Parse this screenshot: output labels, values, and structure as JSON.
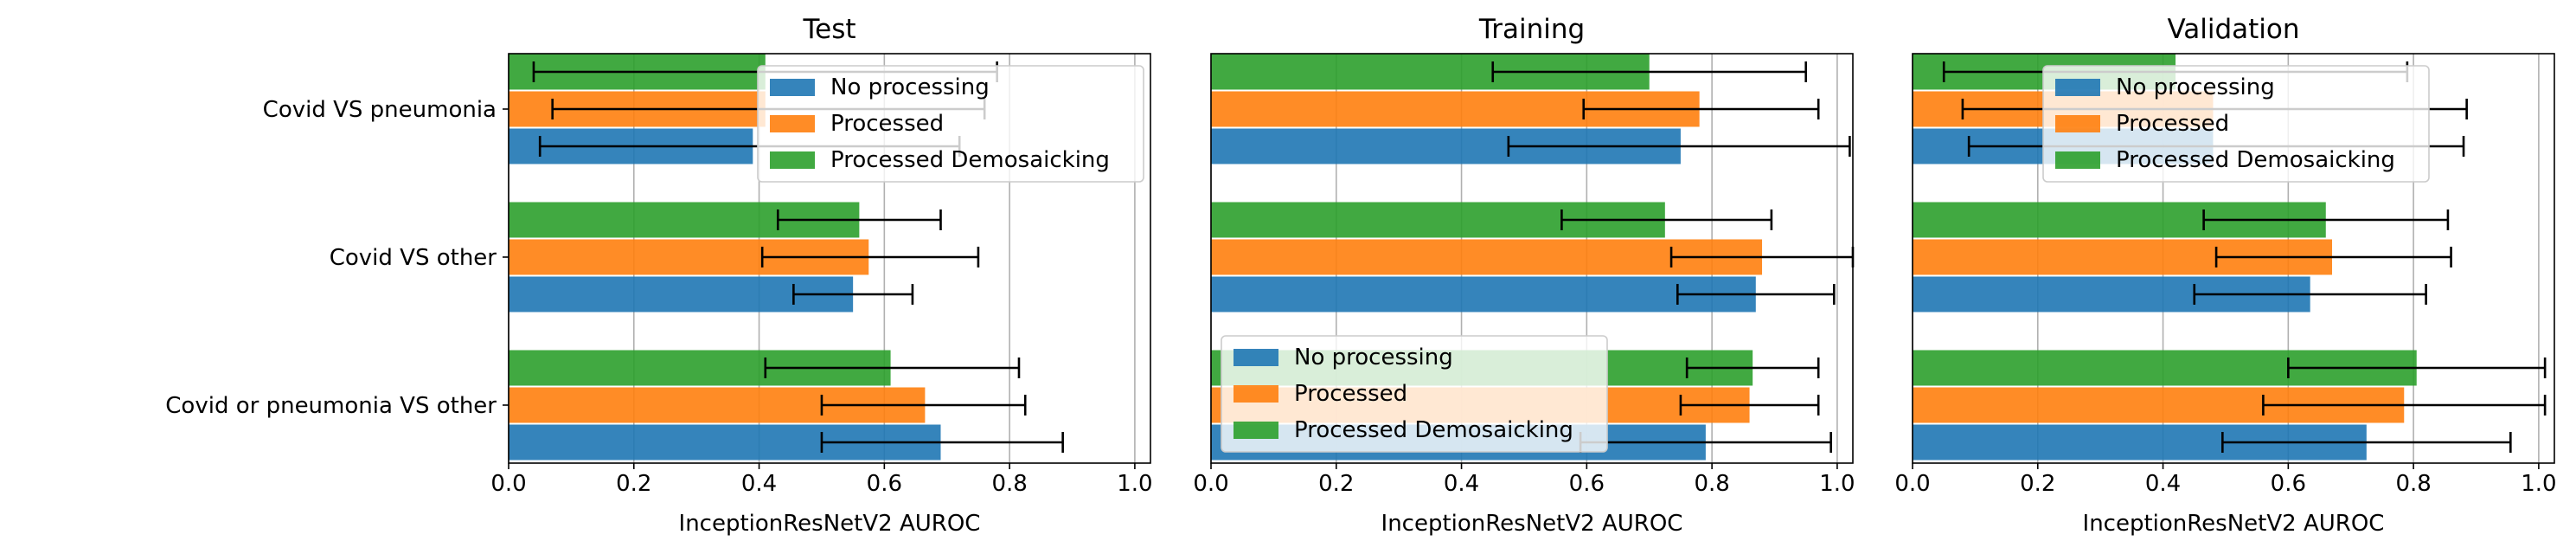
{
  "chart_data": [
    {
      "type": "bar",
      "orientation": "horizontal",
      "title": "Test",
      "xlabel": "InceptionResNetV2 AUROC",
      "xlim": [
        0,
        1.0
      ],
      "xticks": [
        "0.0",
        "0.2",
        "0.4",
        "0.6",
        "0.8",
        "1.0"
      ],
      "categories": [
        "Covid VS pneumonia",
        "Covid VS other",
        "Covid or pneumonia VS other"
      ],
      "grid": "x",
      "legend_position": "top-right",
      "series": [
        {
          "name": "No processing",
          "color": "#1f77b4",
          "values": [
            0.39,
            0.55,
            0.69
          ],
          "err_low": [
            0.05,
            0.455,
            0.5
          ],
          "err_high": [
            0.72,
            0.645,
            0.885
          ]
        },
        {
          "name": "Processed",
          "color": "#ff7f0e",
          "values": [
            0.41,
            0.575,
            0.665
          ],
          "err_low": [
            0.07,
            0.405,
            0.5
          ],
          "err_high": [
            0.76,
            0.75,
            0.825
          ]
        },
        {
          "name": "Processed Demosaicking",
          "color": "#2ca02c",
          "values": [
            0.41,
            0.56,
            0.61
          ],
          "err_low": [
            0.04,
            0.43,
            0.41
          ],
          "err_high": [
            0.78,
            0.69,
            0.815
          ]
        }
      ]
    },
    {
      "type": "bar",
      "orientation": "horizontal",
      "title": "Training",
      "xlabel": "InceptionResNetV2 AUROC",
      "xlim": [
        0,
        1.0
      ],
      "xticks": [
        "0.0",
        "0.2",
        "0.4",
        "0.6",
        "0.8",
        "1.0"
      ],
      "categories": [
        "Covid VS pneumonia",
        "Covid VS other",
        "Covid or pneumonia VS other"
      ],
      "grid": "x",
      "legend_position": "lower-left",
      "series": [
        {
          "name": "No processing",
          "color": "#1f77b4",
          "values": [
            0.75,
            0.87,
            0.79
          ],
          "err_low": [
            0.475,
            0.745,
            0.59
          ],
          "err_high": [
            1.02,
            0.995,
            0.99
          ]
        },
        {
          "name": "Processed",
          "color": "#ff7f0e",
          "values": [
            0.78,
            0.88,
            0.86
          ],
          "err_low": [
            0.595,
            0.735,
            0.75
          ],
          "err_high": [
            0.97,
            1.025,
            0.97
          ]
        },
        {
          "name": "Processed Demosaicking",
          "color": "#2ca02c",
          "values": [
            0.7,
            0.725,
            0.865
          ],
          "err_low": [
            0.45,
            0.56,
            0.76
          ],
          "err_high": [
            0.95,
            0.895,
            0.97
          ]
        }
      ]
    },
    {
      "type": "bar",
      "orientation": "horizontal",
      "title": "Validation",
      "xlabel": "InceptionResNetV2 AUROC",
      "xlim": [
        0,
        1.0
      ],
      "xticks": [
        "0.0",
        "0.2",
        "0.4",
        "0.6",
        "0.8",
        "1.0"
      ],
      "categories": [
        "Covid VS pneumonia",
        "Covid VS other",
        "Covid or pneumonia VS other"
      ],
      "grid": "x",
      "legend_position": "top-center",
      "series": [
        {
          "name": "No processing",
          "color": "#1f77b4",
          "values": [
            0.48,
            0.635,
            0.725
          ],
          "err_low": [
            0.09,
            0.45,
            0.495
          ],
          "err_high": [
            0.88,
            0.82,
            0.955
          ]
        },
        {
          "name": "Processed",
          "color": "#ff7f0e",
          "values": [
            0.48,
            0.67,
            0.785
          ],
          "err_low": [
            0.08,
            0.485,
            0.56
          ],
          "err_high": [
            0.885,
            0.86,
            1.01
          ]
        },
        {
          "name": "Processed Demosaicking",
          "color": "#2ca02c",
          "values": [
            0.42,
            0.66,
            0.805
          ],
          "err_low": [
            0.05,
            0.465,
            0.6
          ],
          "err_high": [
            0.79,
            0.855,
            1.01
          ]
        }
      ]
    }
  ]
}
